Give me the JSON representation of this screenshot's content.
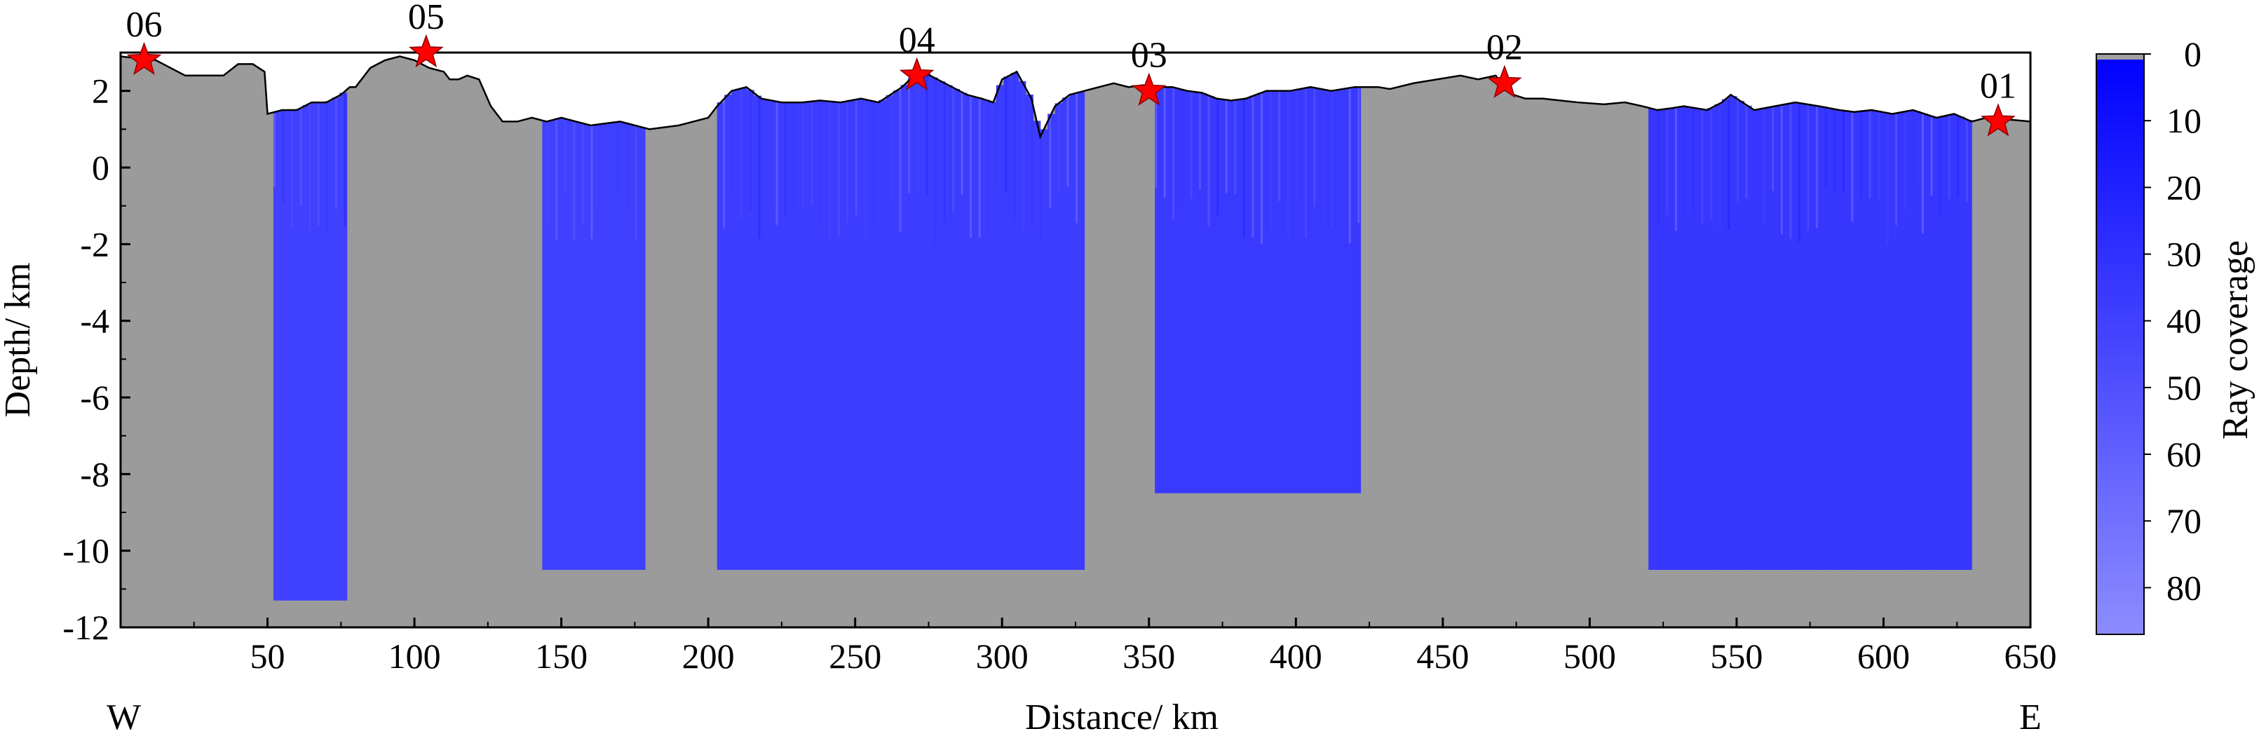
{
  "chart_data": {
    "type": "heatmap",
    "xlabel": "Distance/ km",
    "ylabel": "Depth/ km",
    "xlim": [
      0,
      650
    ],
    "ylim": [
      -12,
      3
    ],
    "x_ticks": [
      50,
      100,
      150,
      200,
      250,
      300,
      350,
      400,
      450,
      500,
      550,
      600,
      650
    ],
    "y_ticks": [
      2,
      0,
      -2,
      -4,
      -6,
      -8,
      -10,
      -12
    ],
    "direction_labels": {
      "left": "W",
      "right": "E"
    },
    "background_color": "#9b9b9b",
    "coverage_color": "#1414ff",
    "colorbar": {
      "label": "Ray coverage",
      "ticks": [
        0,
        10,
        20,
        30,
        40,
        50,
        60,
        70,
        80
      ],
      "range": [
        0,
        87
      ],
      "color_low": "#8c8cff",
      "color_high": "#0000ff"
    },
    "topography": {
      "x": [
        0,
        12,
        22,
        35,
        40,
        45,
        49,
        50,
        55,
        60,
        65,
        70,
        75,
        78,
        80,
        85,
        90,
        95,
        100,
        105,
        110,
        112,
        115,
        118,
        122,
        126,
        130,
        135,
        140,
        145,
        150,
        155,
        160,
        170,
        180,
        190,
        200,
        203,
        208,
        213,
        218,
        225,
        232,
        238,
        245,
        252,
        258,
        262,
        266,
        270,
        273,
        278,
        283,
        288,
        293,
        297,
        300,
        305,
        310,
        313,
        318,
        323,
        328,
        333,
        338,
        343,
        348,
        352,
        358,
        363,
        368,
        373,
        378,
        383,
        390,
        398,
        405,
        412,
        420,
        428,
        432,
        440,
        448,
        456,
        462,
        468,
        470,
        474,
        478,
        484,
        490,
        496,
        505,
        512,
        518,
        523,
        528,
        532,
        540,
        545,
        548,
        556,
        563,
        570,
        578,
        585,
        590,
        596,
        603,
        610,
        618,
        624,
        630,
        635,
        641,
        643,
        650
      ],
      "y": [
        2.9,
        2.8,
        2.4,
        2.4,
        2.7,
        2.7,
        2.5,
        1.4,
        1.5,
        1.5,
        1.7,
        1.7,
        1.9,
        2.1,
        2.1,
        2.6,
        2.8,
        2.9,
        2.8,
        2.6,
        2.5,
        2.3,
        2.3,
        2.4,
        2.3,
        1.6,
        1.2,
        1.2,
        1.3,
        1.2,
        1.3,
        1.2,
        1.1,
        1.2,
        1.0,
        1.1,
        1.3,
        1.6,
        2.0,
        2.1,
        1.8,
        1.7,
        1.7,
        1.75,
        1.7,
        1.8,
        1.7,
        1.9,
        2.1,
        2.4,
        2.5,
        2.3,
        2.1,
        1.9,
        1.8,
        1.7,
        2.3,
        2.5,
        1.8,
        0.8,
        1.6,
        1.9,
        2.0,
        2.1,
        2.2,
        2.1,
        2.15,
        2.1,
        2.1,
        2.0,
        1.95,
        1.8,
        1.75,
        1.8,
        2.0,
        2.0,
        2.1,
        2.0,
        2.1,
        2.1,
        2.05,
        2.2,
        2.3,
        2.4,
        2.3,
        2.4,
        2.2,
        1.9,
        1.8,
        1.8,
        1.75,
        1.7,
        1.65,
        1.7,
        1.6,
        1.5,
        1.55,
        1.6,
        1.5,
        1.7,
        1.9,
        1.5,
        1.6,
        1.7,
        1.6,
        1.5,
        1.45,
        1.5,
        1.4,
        1.5,
        1.3,
        1.4,
        1.2,
        1.3,
        1.2,
        1.25,
        1.2
      ],
      "line_color": "#000000"
    },
    "stations": [
      {
        "label": "06",
        "x": 8,
        "y": 2.8
      },
      {
        "label": "05",
        "x": 104,
        "y": 3.0
      },
      {
        "label": "04",
        "x": 271,
        "y": 2.4
      },
      {
        "label": "03",
        "x": 350,
        "y": 2.0
      },
      {
        "label": "02",
        "x": 471,
        "y": 2.2
      },
      {
        "label": "01",
        "x": 639,
        "y": 1.2
      }
    ],
    "station_color": "#ff0000",
    "coverage_zones": [
      {
        "center": 64,
        "steps": [
          [
            12.0,
            -3.4,
            3.4,
            10
          ],
          [
            20.0,
            -5.0,
            2.7,
            14
          ],
          [
            26.0,
            -7.0,
            2.0,
            18
          ],
          [
            32.0,
            -8.5,
            1.6,
            22
          ],
          [
            38.0,
            -9.5,
            1.1,
            28
          ],
          [
            42.0,
            -10.5,
            0.9,
            32
          ],
          [
            55.0,
            -11.3,
            0.4,
            40
          ]
        ]
      },
      {
        "center": 160,
        "steps": [
          [
            16.5,
            -3.4,
            3.4,
            10
          ],
          [
            24.0,
            -4.5,
            2.5,
            14
          ],
          [
            30.0,
            -6.0,
            2.1,
            18
          ],
          [
            36.0,
            -7.5,
            1.6,
            22
          ],
          [
            40.0,
            -8.5,
            1.0,
            28
          ],
          [
            44.0,
            -9.5,
            0.8,
            32
          ],
          [
            55.0,
            -10.5,
            0.4,
            40
          ]
        ]
      },
      {
        "center": 265,
        "steps": [
          [
            62.0,
            -3.4,
            3.4,
            8
          ],
          [
            70.0,
            -5.0,
            2.3,
            12
          ],
          [
            78.0,
            -6.5,
            2.2,
            16
          ],
          [
            84.0,
            -8.0,
            1.8,
            20
          ],
          [
            90.0,
            -9.0,
            1.2,
            26
          ],
          [
            96.0,
            -10.0,
            1.0,
            30
          ],
          [
            105.0,
            -10.5,
            0.4,
            38
          ]
        ]
      },
      {
        "center": 387,
        "steps": [
          [
            35.0,
            -3.4,
            3.4,
            10
          ],
          [
            45.0,
            -4.5,
            2.5,
            14
          ],
          [
            52.0,
            -6.0,
            2.1,
            18
          ],
          [
            58.0,
            -7.0,
            1.6,
            22
          ],
          [
            64.0,
            -8.0,
            1.0,
            28
          ],
          [
            75.0,
            -8.5,
            0.4,
            36
          ]
        ]
      },
      {
        "center": 575,
        "steps": [
          [
            55.0,
            -3.4,
            3.4,
            10
          ],
          [
            48.0,
            -5.5,
            2.5,
            14
          ],
          [
            58.0,
            -7.5,
            2.1,
            18
          ],
          [
            60.0,
            -8.5,
            1.6,
            22
          ],
          [
            62.0,
            -9.5,
            1.0,
            28
          ],
          [
            64.0,
            -10.5,
            0.9,
            34
          ]
        ]
      }
    ]
  }
}
